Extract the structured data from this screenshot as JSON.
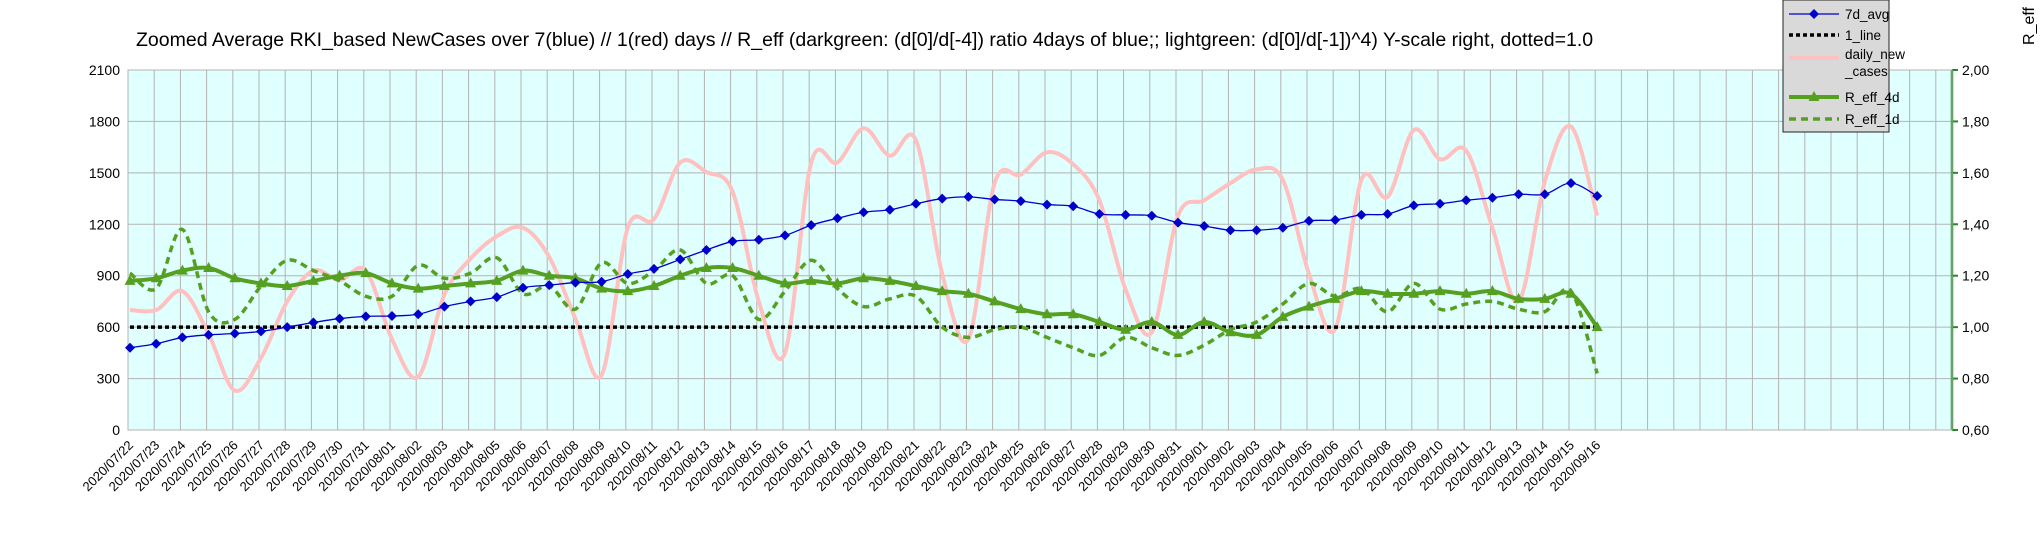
{
  "chart_data": {
    "type": "line",
    "title": "Zoomed Average RKI_based NewCases over 7(blue) // 1(red) days //  R_eff (darkgreen: (d[0]/d[-4]) ratio 4days of blue;; lightgreen: (d[0]/d[-1])^4) Y-scale right, dotted=1.0",
    "y2label": "R_eff",
    "ylim": [
      0,
      2100
    ],
    "yticks": [
      "0",
      "300",
      "600",
      "900",
      "1200",
      "1500",
      "1800",
      "2100"
    ],
    "y2lim": [
      0.6,
      2.0
    ],
    "y2ticks": [
      "0,60",
      "0,80",
      "1,00",
      "1,20",
      "1,40",
      "1,60",
      "1,80",
      "2,00"
    ],
    "grid": true,
    "legend_position": "top-right",
    "categories": [
      "2020/07/22",
      "2020/07/23",
      "2020/07/24",
      "2020/07/25",
      "2020/07/26",
      "2020/07/27",
      "2020/07/28",
      "2020/07/29",
      "2020/07/30",
      "2020/07/31",
      "2020/08/01",
      "2020/08/02",
      "2020/08/03",
      "2020/08/04",
      "2020/08/05",
      "2020/08/06",
      "2020/08/07",
      "2020/08/08",
      "2020/08/09",
      "2020/08/10",
      "2020/08/11",
      "2020/08/12",
      "2020/08/13",
      "2020/08/14",
      "2020/08/15",
      "2020/08/16",
      "2020/08/17",
      "2020/08/18",
      "2020/08/19",
      "2020/08/20",
      "2020/08/21",
      "2020/08/22",
      "2020/08/23",
      "2020/08/24",
      "2020/08/25",
      "2020/08/26",
      "2020/08/27",
      "2020/08/28",
      "2020/08/29",
      "2020/08/30",
      "2020/08/31",
      "2020/09/01",
      "2020/09/02",
      "2020/09/03",
      "2020/09/04",
      "2020/09/05",
      "2020/09/06",
      "2020/09/07",
      "2020/09/08",
      "2020/09/09",
      "2020/09/10",
      "2020/09/11",
      "2020/09/12",
      "2020/09/13",
      "2020/09/14",
      "2020/09/15",
      "2020/09/16"
    ],
    "series": [
      {
        "name": "7d_avg",
        "axis": "left",
        "color": "#0000cc",
        "marker": "diamond",
        "values": [
          480,
          503,
          540,
          555,
          563,
          575,
          600,
          627,
          650,
          663,
          665,
          675,
          720,
          750,
          775,
          830,
          845,
          860,
          865,
          910,
          940,
          995,
          1050,
          1100,
          1110,
          1135,
          1195,
          1235,
          1270,
          1285,
          1320,
          1350,
          1360,
          1345,
          1335,
          1315,
          1305,
          1260,
          1255,
          1250,
          1210,
          1190,
          1165,
          1165,
          1180,
          1220,
          1225,
          1255,
          1260,
          1310,
          1320,
          1340,
          1355,
          1375,
          1375,
          1440,
          1365
        ]
      },
      {
        "name": "1_line",
        "axis": "right",
        "color": "#000000",
        "dash": "dotted",
        "values": [
          1.0,
          1.0,
          1.0,
          1.0,
          1.0,
          1.0,
          1.0,
          1.0,
          1.0,
          1.0,
          1.0,
          1.0,
          1.0,
          1.0,
          1.0,
          1.0,
          1.0,
          1.0,
          1.0,
          1.0,
          1.0,
          1.0,
          1.0,
          1.0,
          1.0,
          1.0,
          1.0,
          1.0,
          1.0,
          1.0,
          1.0,
          1.0,
          1.0,
          1.0,
          1.0,
          1.0,
          1.0,
          1.0,
          1.0,
          1.0,
          1.0,
          1.0,
          1.0,
          1.0,
          1.0,
          1.0,
          1.0,
          1.0,
          1.0,
          1.0,
          1.0,
          1.0,
          1.0,
          1.0,
          1.0,
          1.0,
          1.0
        ]
      },
      {
        "name": "daily_new_cases",
        "axis": "left",
        "color": "#ffc0c0",
        "values": [
          700,
          700,
          810,
          560,
          230,
          420,
          750,
          930,
          875,
          930,
          530,
          310,
          790,
          1000,
          1130,
          1180,
          1010,
          650,
          320,
          1180,
          1230,
          1560,
          1505,
          1390,
          750,
          450,
          1560,
          1560,
          1760,
          1600,
          1690,
          910,
          530,
          1440,
          1490,
          1620,
          1550,
          1340,
          820,
          570,
          1250,
          1340,
          1440,
          1520,
          1460,
          910,
          590,
          1460,
          1360,
          1750,
          1580,
          1630,
          1180,
          750,
          1450,
          1770,
          1250
        ]
      },
      {
        "name": "R_eff_4d",
        "axis": "right",
        "color": "#55a020",
        "marker": "triangle",
        "values": [
          1.18,
          1.19,
          1.22,
          1.23,
          1.19,
          1.17,
          1.16,
          1.18,
          1.2,
          1.21,
          1.17,
          1.15,
          1.16,
          1.17,
          1.18,
          1.22,
          1.2,
          1.19,
          1.15,
          1.14,
          1.16,
          1.2,
          1.23,
          1.23,
          1.2,
          1.17,
          1.18,
          1.17,
          1.19,
          1.18,
          1.16,
          1.14,
          1.13,
          1.1,
          1.07,
          1.05,
          1.05,
          1.02,
          0.99,
          1.02,
          0.97,
          1.02,
          0.98,
          0.97,
          1.04,
          1.08,
          1.11,
          1.14,
          1.13,
          1.13,
          1.14,
          1.13,
          1.14,
          1.11,
          1.11,
          1.13,
          1.0
        ]
      },
      {
        "name": "R_eff_1d",
        "axis": "right",
        "color": "#55a020",
        "dash": "dashed",
        "values": [
          1.21,
          1.15,
          1.38,
          1.06,
          1.03,
          1.16,
          1.26,
          1.22,
          1.18,
          1.12,
          1.12,
          1.24,
          1.19,
          1.21,
          1.27,
          1.13,
          1.16,
          1.07,
          1.25,
          1.17,
          1.22,
          1.3,
          1.17,
          1.2,
          1.03,
          1.14,
          1.26,
          1.15,
          1.08,
          1.11,
          1.12,
          1.0,
          0.96,
          0.99,
          1.0,
          0.96,
          0.92,
          0.89,
          0.96,
          0.92,
          0.89,
          0.93,
          0.99,
          1.02,
          1.09,
          1.17,
          1.12,
          1.15,
          1.06,
          1.17,
          1.07,
          1.09,
          1.1,
          1.07,
          1.06,
          1.14,
          0.82
        ]
      }
    ]
  }
}
